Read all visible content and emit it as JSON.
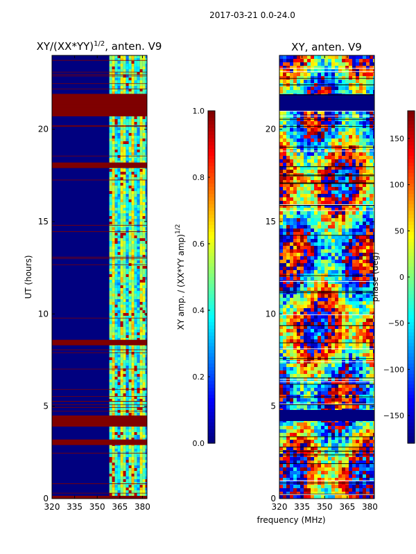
{
  "suptitle": "2017-03-21 0.0-24.0",
  "colors": {
    "jet": [
      "#00007f",
      "#0000ff",
      "#007fff",
      "#00ffff",
      "#7fff7f",
      "#ffff00",
      "#ff7f00",
      "#ff0000",
      "#7f0000"
    ],
    "bad_band": "#7f0000",
    "text": "#000000"
  },
  "chart_data": [
    {
      "type": "heatmap",
      "title_main": "XY/(XX*YY)",
      "title_exp": "1/2",
      "title_tail": ", anten. V9",
      "xlabel": "",
      "ylabel": "UT (hours)",
      "xlim": [
        320,
        383
      ],
      "ylim": [
        0,
        24
      ],
      "xticks": [
        320,
        335,
        350,
        365,
        380
      ],
      "yticks": [
        0,
        5,
        10,
        15,
        20
      ],
      "hot_band_start_mhz": 358,
      "bad_bands_ut": [
        [
          0.0,
          0.15
        ],
        [
          2.9,
          3.2
        ],
        [
          3.9,
          4.5
        ],
        [
          8.3,
          8.6
        ],
        [
          17.9,
          18.2
        ],
        [
          20.7,
          21.9
        ]
      ],
      "colorbar": {
        "label_main": "XY amp. / (XX*YY amp)",
        "label_exp": "1/2",
        "range": [
          0.0,
          1.0
        ],
        "ticks": [
          "0.0",
          "0.2",
          "0.4",
          "0.6",
          "0.8",
          "1.0"
        ]
      }
    },
    {
      "type": "heatmap",
      "title_main": "XY, anten. V9",
      "xlabel": "frequency (MHz)",
      "ylabel": "",
      "xlim": [
        320,
        383
      ],
      "ylim": [
        0,
        24
      ],
      "xticks": [
        320,
        335,
        350,
        365,
        380
      ],
      "yticks": [
        0,
        5,
        10,
        15,
        20
      ],
      "bad_bands_ut": [
        [
          4.2,
          4.8
        ],
        [
          21.0,
          21.9
        ]
      ],
      "colorbar": {
        "label": "phase (deg)",
        "range": [
          -180,
          180
        ],
        "ticks": [
          "150",
          "100",
          "50",
          "0",
          "−50",
          "−100",
          "−150"
        ]
      }
    }
  ]
}
